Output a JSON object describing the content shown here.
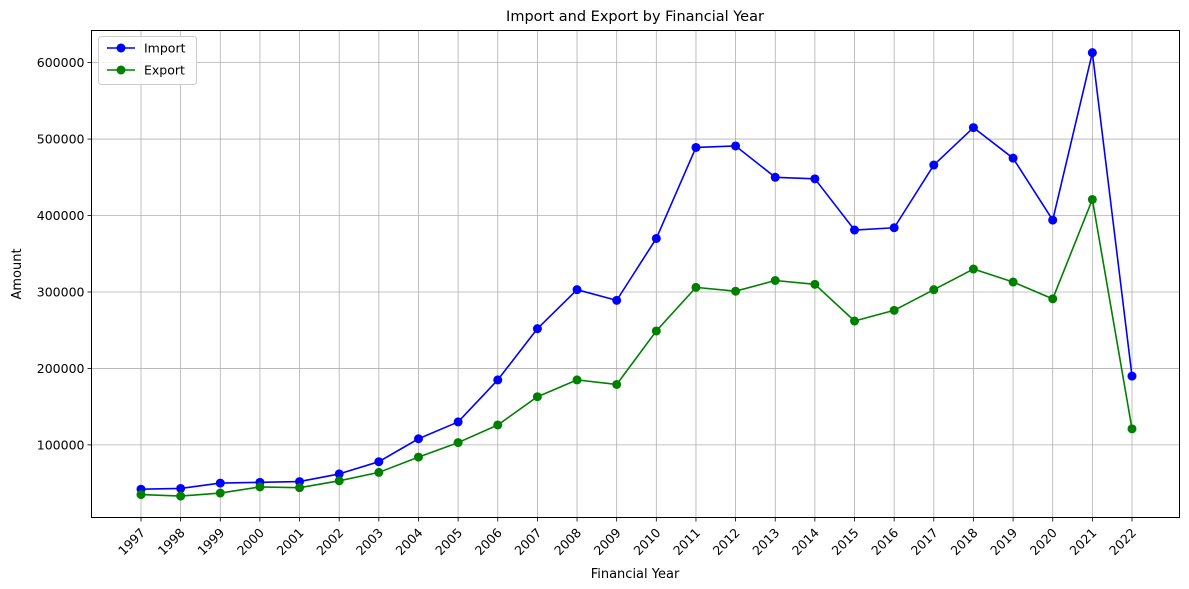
{
  "chart_data": {
    "type": "line",
    "title": "Import and Export by Financial Year",
    "xlabel": "Financial Year",
    "ylabel": "Amount",
    "categories": [
      "1997",
      "1998",
      "1999",
      "2000",
      "2001",
      "2002",
      "2003",
      "2004",
      "2005",
      "2006",
      "2007",
      "2008",
      "2009",
      "2010",
      "2011",
      "2012",
      "2013",
      "2014",
      "2015",
      "2016",
      "2017",
      "2018",
      "2019",
      "2020",
      "2021",
      "2022"
    ],
    "ylim": [
      5000,
      642000
    ],
    "yticks": [
      100000,
      200000,
      300000,
      400000,
      500000,
      600000
    ],
    "ytick_labels": [
      "100000",
      "200000",
      "300000",
      "400000",
      "500000",
      "600000"
    ],
    "grid": true,
    "legend_position": "top-left",
    "series": [
      {
        "name": "Import",
        "color": "#0000ff",
        "marker": "circle",
        "values": [
          42000,
          43000,
          50000,
          51000,
          52000,
          62000,
          78000,
          108000,
          130000,
          185000,
          252000,
          303000,
          289000,
          370000,
          489000,
          491000,
          450000,
          448000,
          381000,
          384000,
          466000,
          515000,
          475000,
          394000,
          613000,
          190000
        ]
      },
      {
        "name": "Export",
        "color": "#008000",
        "marker": "circle",
        "values": [
          35000,
          33000,
          37000,
          45000,
          44000,
          53000,
          64000,
          84000,
          103000,
          126000,
          163000,
          185000,
          179000,
          249000,
          306000,
          301000,
          315000,
          310000,
          262000,
          276000,
          303000,
          330000,
          313000,
          291000,
          421000,
          121000
        ]
      }
    ]
  }
}
